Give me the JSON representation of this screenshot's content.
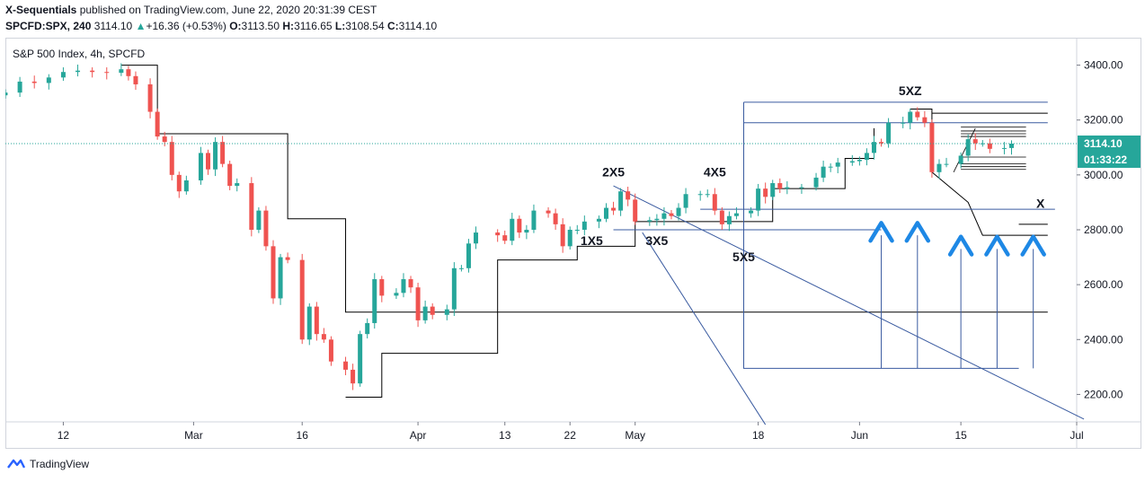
{
  "header": {
    "publisher": "X-Sequentials",
    "published_text": " published on TradingView.com, June 22, 2020 20:31:39 CEST",
    "symbol": "SPCFD:SPX, 240",
    "last": "3114.10",
    "arrow": "▲",
    "change": "+16.36 (+0.53%)",
    "o_label": "O:",
    "o": "3113.50",
    "h_label": "H:",
    "h": "3116.65",
    "l_label": "L:",
    "l": "3108.54",
    "c_label": "C:",
    "c": "3114.10"
  },
  "footer": {
    "brand": "TradingView"
  },
  "colors": {
    "up": "#26a69a",
    "down": "#ef5350",
    "blue": "#2962ff",
    "line_blue": "#3a5ba0",
    "arrow": "#1e88e5",
    "black": "#000000"
  },
  "chart_data": {
    "type": "candlestick",
    "title": "S&P 500 Index, 4h, SPCFD",
    "ylim": [
      2100,
      3500
    ],
    "y_ticks": [
      2200,
      2400,
      2600,
      2800,
      3000,
      3200,
      3400
    ],
    "y_tick_labels": [
      "2200.00",
      "2400.00",
      "2600.00",
      "2800.00",
      "3000.00",
      "3200.00",
      "3400.00"
    ],
    "xlim": [
      "2020-02-04",
      "2020-07-01"
    ],
    "x_ticks": [
      {
        "date": "2020-02-12",
        "label": "12"
      },
      {
        "date": "2020-03-01",
        "label": "Mar"
      },
      {
        "date": "2020-03-16",
        "label": "16"
      },
      {
        "date": "2020-04-01",
        "label": "Apr"
      },
      {
        "date": "2020-04-13",
        "label": "13"
      },
      {
        "date": "2020-04-22",
        "label": "22"
      },
      {
        "date": "2020-05-01",
        "label": "May"
      },
      {
        "date": "2020-05-18",
        "label": "18"
      },
      {
        "date": "2020-06-01",
        "label": "Jun"
      },
      {
        "date": "2020-06-15",
        "label": "15"
      },
      {
        "date": "2020-07-01",
        "label": "Jul"
      }
    ],
    "last_price": {
      "value": 3114.1,
      "label": "3114.10",
      "countdown": "01:33:22"
    },
    "series_close": [
      [
        "2020-02-04",
        3300
      ],
      [
        "2020-02-06",
        3340
      ],
      [
        "2020-02-08",
        3335
      ],
      [
        "2020-02-10",
        3355
      ],
      [
        "2020-02-12",
        3375
      ],
      [
        "2020-02-14",
        3380
      ],
      [
        "2020-02-16",
        3375
      ],
      [
        "2020-02-18",
        3372
      ],
      [
        "2020-02-20",
        3385
      ],
      [
        "2020-02-21",
        3360
      ],
      [
        "2020-02-22",
        3330
      ],
      [
        "2020-02-24",
        3230
      ],
      [
        "2020-02-25",
        3140
      ],
      [
        "2020-02-26",
        3120
      ],
      [
        "2020-02-27",
        3000
      ],
      [
        "2020-02-28",
        2940
      ],
      [
        "2020-02-29",
        2980
      ],
      [
        "2020-03-02",
        3080
      ],
      [
        "2020-03-03",
        3020
      ],
      [
        "2020-03-04",
        3120
      ],
      [
        "2020-03-05",
        3040
      ],
      [
        "2020-03-06",
        2960
      ],
      [
        "2020-03-07",
        2970
      ],
      [
        "2020-03-09",
        2800
      ],
      [
        "2020-03-10",
        2870
      ],
      [
        "2020-03-11",
        2740
      ],
      [
        "2020-03-12",
        2550
      ],
      [
        "2020-03-13",
        2700
      ],
      [
        "2020-03-14",
        2690
      ],
      [
        "2020-03-16",
        2400
      ],
      [
        "2020-03-17",
        2520
      ],
      [
        "2020-03-18",
        2420
      ],
      [
        "2020-03-19",
        2400
      ],
      [
        "2020-03-20",
        2320
      ],
      [
        "2020-03-22",
        2290
      ],
      [
        "2020-03-23",
        2240
      ],
      [
        "2020-03-24",
        2420
      ],
      [
        "2020-03-25",
        2460
      ],
      [
        "2020-03-26",
        2620
      ],
      [
        "2020-03-27",
        2560
      ],
      [
        "2020-03-29",
        2570
      ],
      [
        "2020-03-30",
        2620
      ],
      [
        "2020-03-31",
        2590
      ],
      [
        "2020-04-01",
        2470
      ],
      [
        "2020-04-02",
        2520
      ],
      [
        "2020-04-03",
        2490
      ],
      [
        "2020-04-05",
        2510
      ],
      [
        "2020-04-06",
        2660
      ],
      [
        "2020-04-07",
        2660
      ],
      [
        "2020-04-08",
        2750
      ],
      [
        "2020-04-09",
        2790
      ],
      [
        "2020-04-12",
        2780
      ],
      [
        "2020-04-13",
        2760
      ],
      [
        "2020-04-14",
        2840
      ],
      [
        "2020-04-15",
        2790
      ],
      [
        "2020-04-16",
        2800
      ],
      [
        "2020-04-17",
        2870
      ],
      [
        "2020-04-19",
        2860
      ],
      [
        "2020-04-20",
        2820
      ],
      [
        "2020-04-21",
        2740
      ],
      [
        "2020-04-22",
        2800
      ],
      [
        "2020-04-23",
        2800
      ],
      [
        "2020-04-24",
        2830
      ],
      [
        "2020-04-26",
        2840
      ],
      [
        "2020-04-27",
        2880
      ],
      [
        "2020-04-28",
        2870
      ],
      [
        "2020-04-29",
        2940
      ],
      [
        "2020-04-30",
        2910
      ],
      [
        "2020-05-01",
        2830
      ],
      [
        "2020-05-03",
        2835
      ],
      [
        "2020-05-04",
        2840
      ],
      [
        "2020-05-05",
        2860
      ],
      [
        "2020-05-06",
        2850
      ],
      [
        "2020-05-07",
        2880
      ],
      [
        "2020-05-08",
        2930
      ],
      [
        "2020-05-10",
        2930
      ],
      [
        "2020-05-11",
        2930
      ],
      [
        "2020-05-12",
        2870
      ],
      [
        "2020-05-13",
        2820
      ],
      [
        "2020-05-14",
        2850
      ],
      [
        "2020-05-15",
        2860
      ],
      [
        "2020-05-17",
        2870
      ],
      [
        "2020-05-18",
        2950
      ],
      [
        "2020-05-19",
        2920
      ],
      [
        "2020-05-20",
        2970
      ],
      [
        "2020-05-21",
        2950
      ],
      [
        "2020-05-22",
        2955
      ],
      [
        "2020-05-24",
        2955
      ],
      [
        "2020-05-26",
        2990
      ],
      [
        "2020-05-27",
        3030
      ],
      [
        "2020-05-28",
        3030
      ],
      [
        "2020-05-29",
        3045
      ],
      [
        "2020-05-31",
        3050
      ],
      [
        "2020-06-01",
        3055
      ],
      [
        "2020-06-02",
        3080
      ],
      [
        "2020-06-03",
        3120
      ],
      [
        "2020-06-04",
        3115
      ],
      [
        "2020-06-05",
        3190
      ],
      [
        "2020-06-07",
        3190
      ],
      [
        "2020-06-08",
        3230
      ],
      [
        "2020-06-09",
        3210
      ],
      [
        "2020-06-10",
        3190
      ],
      [
        "2020-06-11",
        3010
      ],
      [
        "2020-06-12",
        3040
      ],
      [
        "2020-06-13",
        3040
      ],
      [
        "2020-06-15",
        3070
      ],
      [
        "2020-06-16",
        3130
      ],
      [
        "2020-06-17",
        3115
      ],
      [
        "2020-06-18",
        3115
      ],
      [
        "2020-06-19",
        3095
      ],
      [
        "2020-06-21",
        3098
      ],
      [
        "2020-06-22",
        3114
      ]
    ],
    "annotations": [
      {
        "text": "5XZ",
        "date": "2020-06-08",
        "price": 3290
      },
      {
        "text": "2X5",
        "date": "2020-04-28",
        "price": 2995
      },
      {
        "text": "4X5",
        "date": "2020-05-12",
        "price": 2995
      },
      {
        "text": "1X5",
        "date": "2020-04-25",
        "price": 2745
      },
      {
        "text": "3X5",
        "date": "2020-05-04",
        "price": 2745
      },
      {
        "text": "5X5",
        "date": "2020-05-16",
        "price": 2685
      },
      {
        "text": "X",
        "date": "2020-06-26",
        "price": 2880
      }
    ]
  }
}
